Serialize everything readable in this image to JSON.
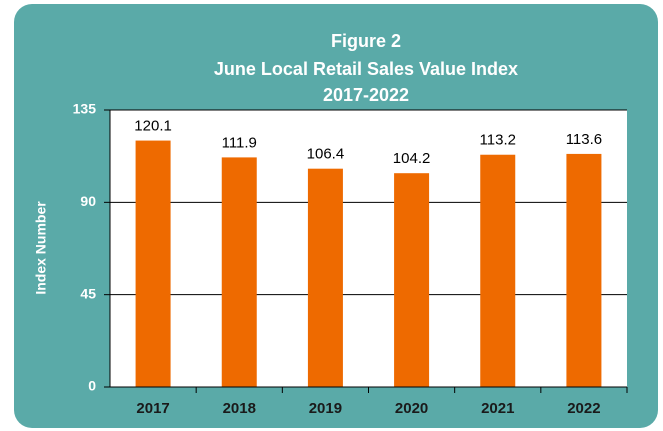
{
  "chart_data": {
    "type": "bar",
    "title": [
      "Figure 2",
      "June Local Retail Sales Value Index",
      "2017-2022"
    ],
    "y_label": "Index Number",
    "categories": [
      "2017",
      "2018",
      "2019",
      "2020",
      "2021",
      "2022"
    ],
    "values": [
      120.1,
      111.9,
      106.4,
      104.2,
      113.2,
      113.6
    ],
    "color": "#ee6a00",
    "ylim": [
      0,
      135
    ],
    "yticks": [
      0,
      45,
      90,
      135
    ],
    "grid": true
  }
}
